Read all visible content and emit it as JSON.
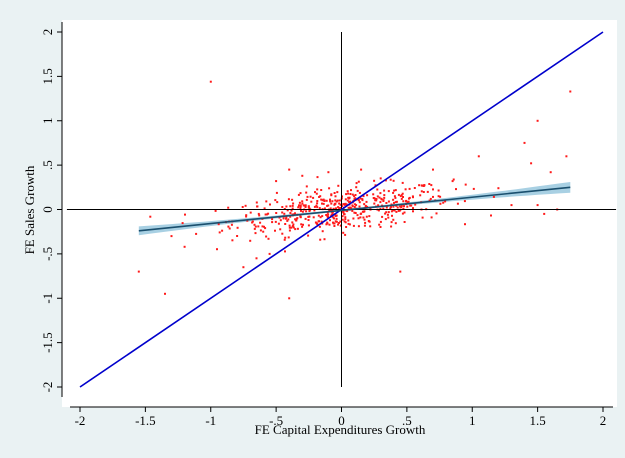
{
  "chart_data": {
    "type": "scatter",
    "title": "",
    "cropped_title_fragment": "...",
    "xlabel": "FE Capital Expenditures Growth",
    "ylabel": "FE Sales Growth",
    "xlim": [
      -2.1,
      2.1
    ],
    "ylim": [
      -2.1,
      2.1
    ],
    "xticks": [
      -2,
      -1.5,
      -1,
      -0.5,
      0,
      0.5,
      1,
      1.5,
      2
    ],
    "xtick_labels": [
      "-2",
      "-1.5",
      "-1",
      "-.5",
      "0",
      ".5",
      "1",
      "1.5",
      "2"
    ],
    "yticks": [
      -2,
      -1.5,
      -1,
      -0.5,
      0,
      0.5,
      1,
      1.5,
      2
    ],
    "ytick_labels": [
      "-2",
      "-1.5",
      "-1",
      "-.5",
      "0",
      ".5",
      "1",
      "1.5",
      "2"
    ],
    "grid": false,
    "legend": "none",
    "reference_lines": {
      "x": 0,
      "y": 0,
      "color": "#000000"
    },
    "identity_line": {
      "from": [
        -2,
        -2
      ],
      "to": [
        2,
        2
      ],
      "color": "#0000cc"
    },
    "fit_line": {
      "from": [
        -1.55,
        -0.24
      ],
      "to": [
        1.75,
        0.25
      ],
      "color": "#1a4f6e",
      "ci_color": "#9fcbe0",
      "ci_halfwidth_ends": 0.055,
      "ci_halfwidth_mid": 0.012
    },
    "highlighted_points": [
      [
        -1.0,
        1.44
      ],
      [
        1.5,
        1.0
      ],
      [
        1.75,
        1.33
      ],
      [
        1.45,
        0.52
      ],
      [
        1.6,
        0.42
      ],
      [
        1.72,
        0.6
      ],
      [
        1.4,
        0.75
      ],
      [
        1.05,
        0.6
      ],
      [
        0.85,
        0.32
      ],
      [
        0.7,
        0.45
      ],
      [
        0.95,
        0.28
      ],
      [
        1.2,
        0.24
      ],
      [
        1.3,
        0.05
      ],
      [
        1.5,
        0.05
      ],
      [
        1.55,
        -0.05
      ],
      [
        1.65,
        0.0
      ],
      [
        -1.55,
        -0.7
      ],
      [
        -1.35,
        -0.95
      ],
      [
        -1.2,
        -0.42
      ],
      [
        -1.3,
        -0.3
      ],
      [
        -0.4,
        -1.0
      ],
      [
        0.45,
        -0.7
      ],
      [
        -0.65,
        -0.55
      ],
      [
        -0.75,
        -0.65
      ],
      [
        -0.55,
        -0.5
      ],
      [
        -0.4,
        0.45
      ],
      [
        0.15,
        0.45
      ],
      [
        -0.1,
        0.42
      ],
      [
        -0.3,
        0.38
      ],
      [
        -0.5,
        0.32
      ],
      [
        0.3,
        0.35
      ]
    ],
    "cloud": {
      "n": 520,
      "x_center": 0.0,
      "x_sd": 0.42,
      "slope": 0.15,
      "resid_sd": 0.12,
      "seed": 12345,
      "color": "#ff1a1a"
    }
  }
}
